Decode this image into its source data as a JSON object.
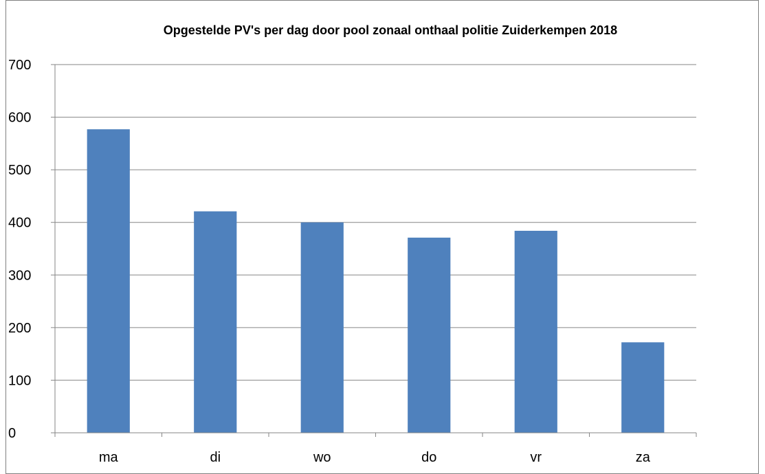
{
  "chart_data": {
    "type": "bar",
    "title": "Opgestelde PV's per dag door pool zonaal onthaal politie Zuiderkempen 2018",
    "xlabel": "",
    "ylabel": "",
    "categories": [
      "ma",
      "di",
      "wo",
      "do",
      "vr",
      "za"
    ],
    "values": [
      577,
      421,
      400,
      371,
      384,
      172
    ],
    "ylim": [
      0,
      700
    ],
    "yticks": [
      "0",
      "100",
      "200",
      "300",
      "400",
      "500",
      "600",
      "700"
    ],
    "grid": true,
    "legend": "none",
    "bar_color": "#4f81bd"
  }
}
